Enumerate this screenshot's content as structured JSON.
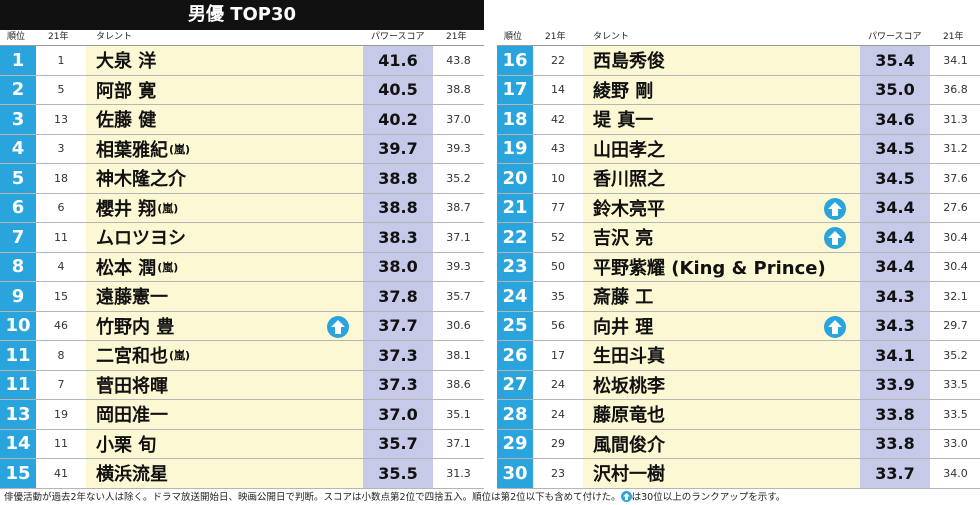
{
  "title": "男優 TOP30",
  "headers": {
    "rank": "順位",
    "prev": "21年",
    "talent": "タレント",
    "power": "パワースコア",
    "score21": "21年"
  },
  "rows_left": [
    {
      "rank": "1",
      "prev": "1",
      "name": "大泉 洋",
      "group": "",
      "up": false,
      "score": "41.6",
      "s21": "43.8"
    },
    {
      "rank": "2",
      "prev": "5",
      "name": "阿部 寛",
      "group": "",
      "up": false,
      "score": "40.5",
      "s21": "38.8"
    },
    {
      "rank": "3",
      "prev": "13",
      "name": "佐藤 健",
      "group": "",
      "up": false,
      "score": "40.2",
      "s21": "37.0"
    },
    {
      "rank": "4",
      "prev": "3",
      "name": "相葉雅紀",
      "group": "(嵐)",
      "up": false,
      "score": "39.7",
      "s21": "39.3"
    },
    {
      "rank": "5",
      "prev": "18",
      "name": "神木隆之介",
      "group": "",
      "up": false,
      "score": "38.8",
      "s21": "35.2"
    },
    {
      "rank": "6",
      "prev": "6",
      "name": "櫻井 翔",
      "group": "(嵐)",
      "up": false,
      "score": "38.8",
      "s21": "38.7"
    },
    {
      "rank": "7",
      "prev": "11",
      "name": "ムロツヨシ",
      "group": "",
      "up": false,
      "score": "38.3",
      "s21": "37.1"
    },
    {
      "rank": "8",
      "prev": "4",
      "name": "松本 潤",
      "group": "(嵐)",
      "up": false,
      "score": "38.0",
      "s21": "39.3"
    },
    {
      "rank": "9",
      "prev": "15",
      "name": "遠藤憲一",
      "group": "",
      "up": false,
      "score": "37.8",
      "s21": "35.7"
    },
    {
      "rank": "10",
      "prev": "46",
      "name": "竹野内 豊",
      "group": "",
      "up": true,
      "score": "37.7",
      "s21": "30.6"
    },
    {
      "rank": "11",
      "prev": "8",
      "name": "二宮和也",
      "group": "(嵐)",
      "up": false,
      "score": "37.3",
      "s21": "38.1"
    },
    {
      "rank": "11",
      "prev": "7",
      "name": "菅田将暉",
      "group": "",
      "up": false,
      "score": "37.3",
      "s21": "38.6"
    },
    {
      "rank": "13",
      "prev": "19",
      "name": "岡田准一",
      "group": "",
      "up": false,
      "score": "37.0",
      "s21": "35.1"
    },
    {
      "rank": "14",
      "prev": "11",
      "name": "小栗 旬",
      "group": "",
      "up": false,
      "score": "35.7",
      "s21": "37.1"
    },
    {
      "rank": "15",
      "prev": "41",
      "name": "横浜流星",
      "group": "",
      "up": false,
      "score": "35.5",
      "s21": "31.3"
    }
  ],
  "rows_right": [
    {
      "rank": "16",
      "prev": "22",
      "name": "西島秀俊",
      "group": "",
      "up": false,
      "score": "35.4",
      "s21": "34.1"
    },
    {
      "rank": "17",
      "prev": "14",
      "name": "綾野 剛",
      "group": "",
      "up": false,
      "score": "35.0",
      "s21": "36.8"
    },
    {
      "rank": "18",
      "prev": "42",
      "name": "堤 真一",
      "group": "",
      "up": false,
      "score": "34.6",
      "s21": "31.3"
    },
    {
      "rank": "19",
      "prev": "43",
      "name": "山田孝之",
      "group": "",
      "up": false,
      "score": "34.5",
      "s21": "31.2"
    },
    {
      "rank": "20",
      "prev": "10",
      "name": "香川照之",
      "group": "",
      "up": false,
      "score": "34.5",
      "s21": "37.6"
    },
    {
      "rank": "21",
      "prev": "77",
      "name": "鈴木亮平",
      "group": "",
      "up": true,
      "score": "34.4",
      "s21": "27.6"
    },
    {
      "rank": "22",
      "prev": "52",
      "name": "吉沢 亮",
      "group": "",
      "up": true,
      "score": "34.4",
      "s21": "30.4"
    },
    {
      "rank": "23",
      "prev": "50",
      "name": "平野紫耀 (King & Prince)",
      "group": "",
      "up": false,
      "score": "34.4",
      "s21": "30.4"
    },
    {
      "rank": "24",
      "prev": "35",
      "name": "斎藤 工",
      "group": "",
      "up": false,
      "score": "34.3",
      "s21": "32.1"
    },
    {
      "rank": "25",
      "prev": "56",
      "name": "向井 理",
      "group": "",
      "up": true,
      "score": "34.3",
      "s21": "29.7"
    },
    {
      "rank": "26",
      "prev": "17",
      "name": "生田斗真",
      "group": "",
      "up": false,
      "score": "34.1",
      "s21": "35.2"
    },
    {
      "rank": "27",
      "prev": "24",
      "name": "松坂桃李",
      "group": "",
      "up": false,
      "score": "33.9",
      "s21": "33.5"
    },
    {
      "rank": "28",
      "prev": "24",
      "name": "藤原竜也",
      "group": "",
      "up": false,
      "score": "33.8",
      "s21": "33.5"
    },
    {
      "rank": "29",
      "prev": "29",
      "name": "風間俊介",
      "group": "",
      "up": false,
      "score": "33.8",
      "s21": "33.0"
    },
    {
      "rank": "30",
      "prev": "23",
      "name": "沢村一樹",
      "group": "",
      "up": false,
      "score": "33.7",
      "s21": "34.0"
    }
  ],
  "footnote_before_icon": "俳優活動が過去2年ない人は除く。ドラマ放送開始日、映画公開日で判断。スコアは小数点第2位で四捨五入。順位は第2位以下も含めて付けた。",
  "footnote_after_icon": "は30位以上のランクアップを示す。",
  "colors": {
    "rank_bg": "#29a4dd",
    "name_bg": "#fdf8d4",
    "score_bg": "#c6c9e7",
    "title_bg": "#111111"
  },
  "icons": {
    "rank_up": "up-arrow-circle-icon"
  }
}
